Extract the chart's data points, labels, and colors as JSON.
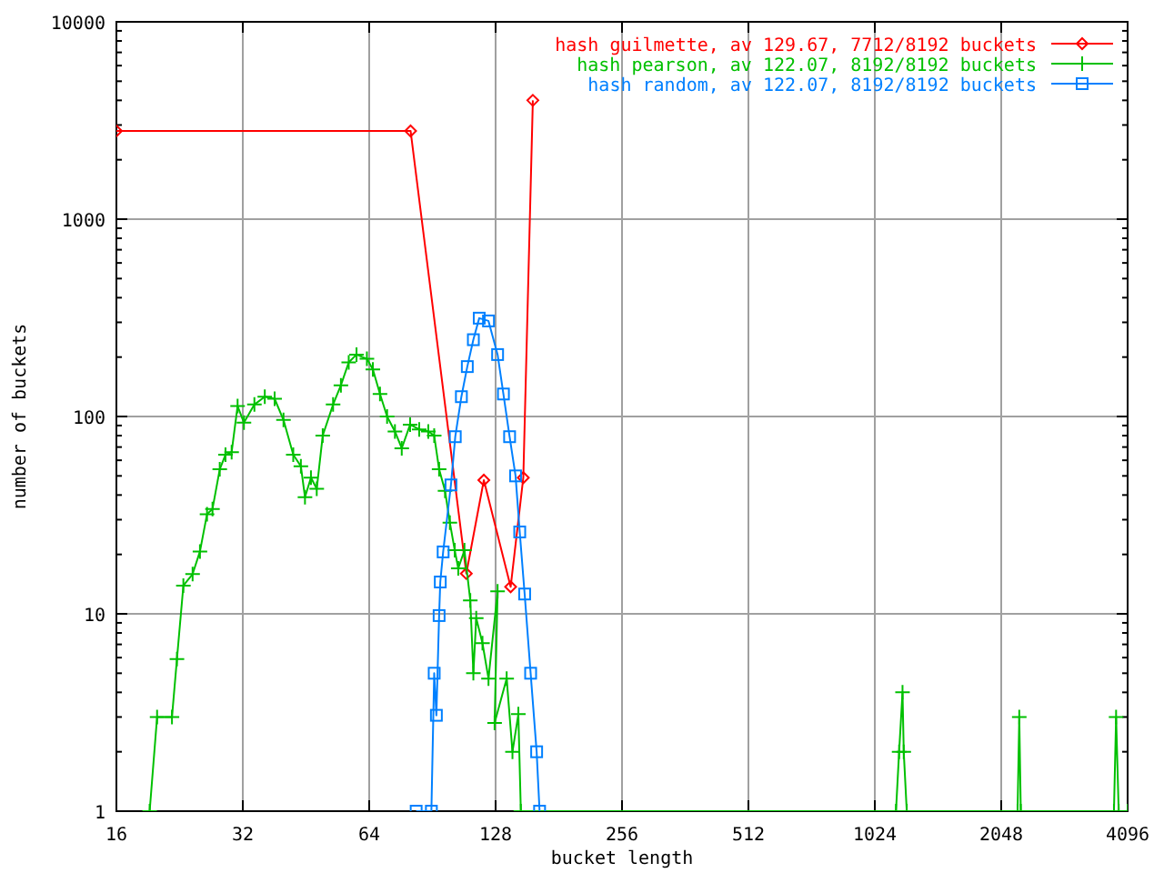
{
  "chart_data": {
    "type": "line",
    "xlabel": "bucket length",
    "ylabel": "number of buckets",
    "log": "xy",
    "xlim": [
      16,
      4096
    ],
    "ylim": [
      1,
      10000
    ],
    "xticks": [
      16,
      32,
      64,
      128,
      256,
      512,
      1024,
      2048,
      4096
    ],
    "yticks": [
      1,
      10,
      100,
      1000,
      10000
    ],
    "grid": true,
    "legend": "top right",
    "line_style": "solid",
    "series": [
      {
        "name": "hash guilmette, av 129.67, 7712/8192 buckets",
        "color": "#ff0000",
        "marker": "diamond",
        "x": [
          16,
          80.3,
          109,
          120,
          139,
          149,
          157
        ],
        "values": [
          2800,
          2800,
          16,
          47.6,
          13.7,
          49,
          4000
        ]
      },
      {
        "name": "hash pearson, av 122.07, 8192/8192 buckets",
        "color": "#00c000",
        "marker": "cross",
        "x": [
          19.2,
          20,
          21.7,
          22.3,
          23.1,
          24.3,
          25.3,
          26.3,
          27.1,
          28.2,
          29.1,
          30.1,
          31.1,
          32.2,
          34.1,
          36.1,
          38.1,
          40,
          42.2,
          44,
          45,
          46.5,
          48,
          49.6,
          52.5,
          54.8,
          57.2,
          59.7,
          63.2,
          65.3,
          67.9,
          70.6,
          73.7,
          76.5,
          80.1,
          84.2,
          88.5,
          91.4,
          93.9,
          97,
          99.6,
          102.3,
          104.3,
          107.9,
          111.4,
          113.3,
          115.1,
          119.1,
          123.1,
          129.4,
          127.3,
          136,
          140.4,
          145,
          147,
          1150,
          1170,
          1192,
          1200,
          1220,
          2240,
          2261,
          2280,
          3800,
          3845,
          3900,
          4096
        ],
        "values": [
          1,
          3,
          3,
          5.9,
          13.9,
          15.9,
          20.7,
          32,
          34,
          54,
          64,
          66,
          113,
          93,
          115,
          126,
          123,
          96,
          64,
          56,
          39,
          49,
          43,
          80,
          115,
          144,
          188,
          206,
          196,
          173,
          130,
          100,
          84,
          69,
          91,
          86,
          84,
          80,
          54,
          42,
          29,
          21,
          17,
          21,
          11.7,
          5,
          9.5,
          7.1,
          4.7,
          13,
          2.8,
          4.7,
          2,
          3.1,
          1,
          1,
          2,
          4,
          2,
          1,
          1,
          3,
          1,
          1,
          3,
          1,
          1
        ]
      },
      {
        "name": "hash random, av 122.07, 8192/8192 buckets",
        "color": "#0080ff",
        "marker": "square",
        "x": [
          82.8,
          90,
          91.4,
          92.5,
          93.9,
          94.5,
          96,
          100.2,
          102.6,
          106.1,
          109.6,
          113.3,
          117,
          123.1,
          129.4,
          133.6,
          138.2,
          142.8,
          146.1,
          150.1,
          155.1,
          160.3,
          162.9
        ],
        "values": [
          1,
          1,
          5,
          3.06,
          9.8,
          14.5,
          20.6,
          45,
          79,
          126,
          179,
          245,
          315,
          305,
          206,
          130,
          79,
          50,
          26,
          12.6,
          5,
          2,
          1
        ]
      }
    ]
  }
}
